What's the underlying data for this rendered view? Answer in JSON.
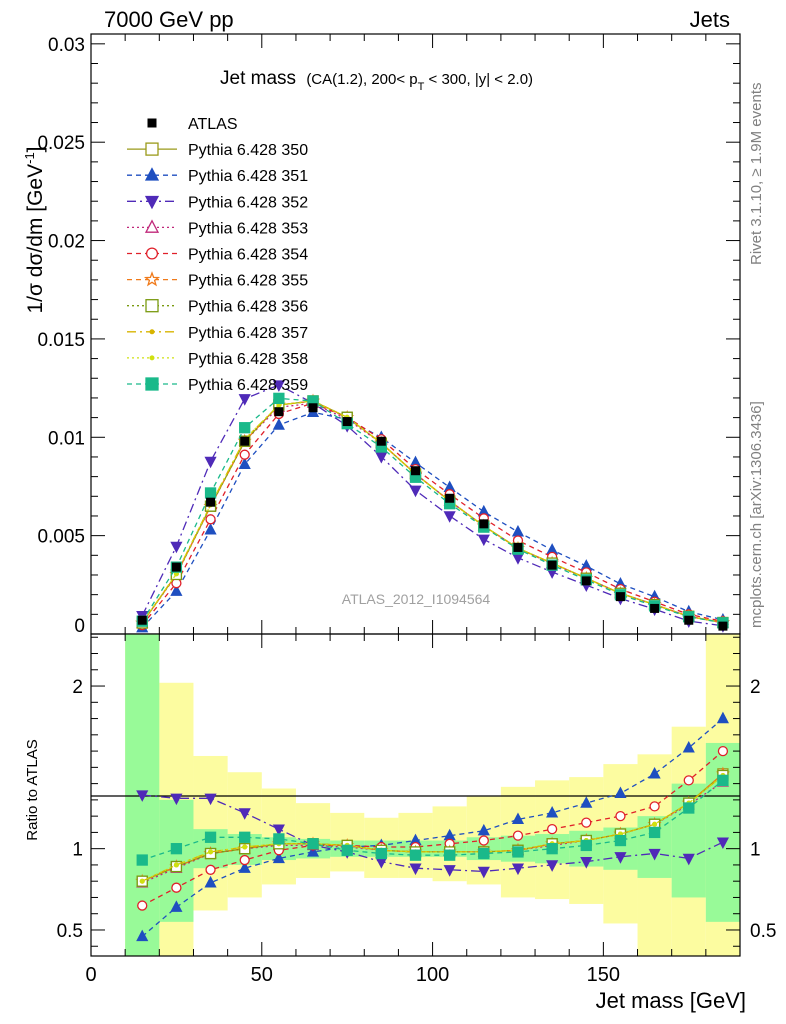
{
  "header": {
    "left": "7000 GeV pp",
    "right": "Jets"
  },
  "side_labels": {
    "rivet": "Rivet 3.1.10, ≥ 1.9M events",
    "mcplots": "mcplots.cern.ch [arXiv:1306.3436]"
  },
  "chart_data": [
    {
      "type": "line",
      "panel": "main",
      "title_main": "Jet mass",
      "title_detail_a": "(CA(1.2), 200< p",
      "title_detail_sub": "T",
      "title_detail_b": " < 300, |y| < 2.0)",
      "ylabel_main": "1/σ dσ/dm [GeV",
      "ylabel_sup": "-1",
      "ylabel_end": "]",
      "watermark": "ATLAS_2012_I1094564",
      "xlim": [
        0,
        190
      ],
      "ylim": [
        0,
        0.0305
      ],
      "x_ticks": [
        0,
        50,
        100,
        150
      ],
      "y_ticks": [
        {
          "v": 0,
          "label": "0"
        },
        {
          "v": 0.005,
          "label": "0.005"
        },
        {
          "v": 0.01,
          "label": "0.01"
        },
        {
          "v": 0.015,
          "label": "0.015"
        },
        {
          "v": 0.02,
          "label": "0.02"
        },
        {
          "v": 0.025,
          "label": "0.025"
        },
        {
          "v": 0.03,
          "label": "0.03"
        }
      ],
      "x": [
        15,
        25,
        35,
        45,
        55,
        65,
        75,
        85,
        95,
        105,
        115,
        125,
        135,
        145,
        155,
        165,
        175,
        185
      ],
      "atlas": [
        0.0007,
        0.0034,
        0.0067,
        0.0098,
        0.0113,
        0.0115,
        0.0108,
        0.0098,
        0.0083,
        0.0069,
        0.0056,
        0.0044,
        0.0035,
        0.0027,
        0.0019,
        0.0013,
        0.0007,
        0.0004
      ],
      "series": [
        {
          "name": "Pythia 6.428 350",
          "color": "#9a9a1a",
          "dash": "",
          "marker": "square-open",
          "ratio": [
            0.8,
            0.89,
            0.97,
            1.0,
            1.03,
            1.03,
            1.02,
            0.99,
            0.98,
            0.98,
            0.98,
            0.99,
            1.03,
            1.05,
            1.09,
            1.15,
            1.28,
            1.46
          ]
        },
        {
          "name": "Pythia 6.428 351",
          "color": "#1f4fc0",
          "dash": "5,4",
          "marker": "triangle-up",
          "ratio": [
            0.46,
            0.64,
            0.79,
            0.88,
            0.94,
            0.98,
            1.01,
            1.02,
            1.05,
            1.08,
            1.11,
            1.18,
            1.22,
            1.28,
            1.34,
            1.46,
            1.62,
            1.8
          ]
        },
        {
          "name": "Pythia 6.428 352",
          "color": "#4f2ab8",
          "dash": "9,4,2,4",
          "marker": "triangle-down",
          "ratio": [
            1.33,
            1.31,
            1.31,
            1.22,
            1.12,
            1.02,
            0.98,
            0.92,
            0.88,
            0.87,
            0.86,
            0.88,
            0.9,
            0.92,
            0.95,
            0.97,
            0.94,
            1.04
          ]
        },
        {
          "name": "Pythia 6.428 353",
          "color": "#c0287a",
          "dash": "2,3",
          "marker": "triangle-up-open",
          "ratio": [
            0.79,
            0.88,
            0.97,
            1.0,
            1.02,
            1.02,
            1.01,
            0.99,
            0.98,
            0.98,
            0.98,
            0.99,
            1.02,
            1.05,
            1.09,
            1.15,
            1.27,
            1.41
          ]
        },
        {
          "name": "Pythia 6.428 354",
          "color": "#e0202a",
          "dash": "5,4",
          "marker": "circle-open",
          "ratio": [
            0.65,
            0.76,
            0.87,
            0.93,
            0.99,
            1.02,
            1.02,
            1.01,
            1.01,
            1.03,
            1.05,
            1.08,
            1.12,
            1.16,
            1.2,
            1.26,
            1.42,
            1.6
          ]
        },
        {
          "name": "Pythia 6.428 355",
          "color": "#f07a1a",
          "dash": "5,4",
          "marker": "star-open",
          "ratio": [
            0.8,
            0.89,
            0.97,
            1.0,
            1.03,
            1.03,
            1.02,
            0.99,
            0.98,
            0.98,
            0.98,
            0.99,
            1.03,
            1.05,
            1.09,
            1.15,
            1.28,
            1.46
          ]
        },
        {
          "name": "Pythia 6.428 356",
          "color": "#7a9a10",
          "dash": "2,3",
          "marker": "square-open",
          "ratio": [
            0.8,
            0.89,
            0.97,
            1.0,
            1.03,
            1.03,
            1.02,
            0.99,
            0.98,
            0.98,
            0.98,
            0.99,
            1.03,
            1.05,
            1.09,
            1.15,
            1.28,
            1.45
          ]
        },
        {
          "name": "Pythia 6.428 357",
          "color": "#d8b400",
          "dash": "9,4,2,4",
          "marker": "dot",
          "ratio": [
            0.8,
            0.9,
            0.98,
            1.01,
            1.03,
            1.03,
            1.02,
            0.99,
            0.98,
            0.98,
            0.98,
            0.99,
            1.03,
            1.05,
            1.09,
            1.15,
            1.28,
            1.45
          ]
        },
        {
          "name": "Pythia 6.428 358",
          "color": "#cfe010",
          "dash": "2,3",
          "marker": "dot",
          "ratio": [
            0.8,
            0.9,
            0.98,
            1.01,
            1.03,
            1.03,
            1.02,
            0.99,
            0.98,
            0.98,
            0.98,
            0.99,
            1.03,
            1.05,
            1.09,
            1.15,
            1.28,
            1.45
          ]
        },
        {
          "name": "Pythia 6.428 359",
          "color": "#1ab98a",
          "dash": "5,4",
          "marker": "square",
          "ratio": [
            0.93,
            1.0,
            1.07,
            1.07,
            1.06,
            1.03,
            0.99,
            0.97,
            0.96,
            0.96,
            0.97,
            0.98,
            1.0,
            1.02,
            1.05,
            1.1,
            1.25,
            1.42
          ]
        }
      ],
      "legend": {
        "placement": "top-left",
        "atlas_label": "ATLAS"
      }
    },
    {
      "type": "area",
      "panel": "ratio",
      "ylabel": "Ratio to ATLAS",
      "xlabel": "Jet mass [GeV]",
      "xlim": [
        0,
        190
      ],
      "ylim": [
        0.34,
        2.32
      ],
      "x_ticks": [
        0,
        50,
        100,
        150
      ],
      "y_ticks": [
        {
          "v": 0.5,
          "label": "0.5"
        },
        {
          "v": 1,
          "label": "1"
        },
        {
          "v": 2,
          "label": "2"
        }
      ],
      "bin_edges": [
        10,
        20,
        30,
        40,
        50,
        60,
        70,
        80,
        90,
        100,
        110,
        120,
        130,
        140,
        150,
        160,
        170,
        180,
        190
      ],
      "band_stat": [
        [
          0.34,
          2.32
        ],
        [
          0.55,
          1.3
        ],
        [
          0.88,
          1.12
        ],
        [
          0.9,
          1.09
        ],
        [
          0.93,
          1.07
        ],
        [
          0.94,
          1.06
        ],
        [
          0.95,
          1.05
        ],
        [
          0.95,
          1.05
        ],
        [
          0.95,
          1.05
        ],
        [
          0.95,
          1.05
        ],
        [
          0.93,
          1.07
        ],
        [
          0.92,
          1.08
        ],
        [
          0.91,
          1.09
        ],
        [
          0.89,
          1.11
        ],
        [
          0.87,
          1.13
        ],
        [
          0.82,
          1.2
        ],
        [
          0.7,
          1.4
        ],
        [
          0.55,
          1.65
        ]
      ],
      "band_total": [
        [
          0.34,
          2.32
        ],
        [
          0.34,
          2.02
        ],
        [
          0.62,
          1.57
        ],
        [
          0.7,
          1.47
        ],
        [
          0.78,
          1.37
        ],
        [
          0.82,
          1.28
        ],
        [
          0.86,
          1.22
        ],
        [
          0.82,
          1.19
        ],
        [
          0.82,
          1.22
        ],
        [
          0.8,
          1.26
        ],
        [
          0.78,
          1.32
        ],
        [
          0.7,
          1.38
        ],
        [
          0.69,
          1.42
        ],
        [
          0.66,
          1.44
        ],
        [
          0.54,
          1.52
        ],
        [
          0.34,
          1.58
        ],
        [
          0.34,
          1.75
        ],
        [
          0.34,
          2.32
        ]
      ]
    }
  ]
}
